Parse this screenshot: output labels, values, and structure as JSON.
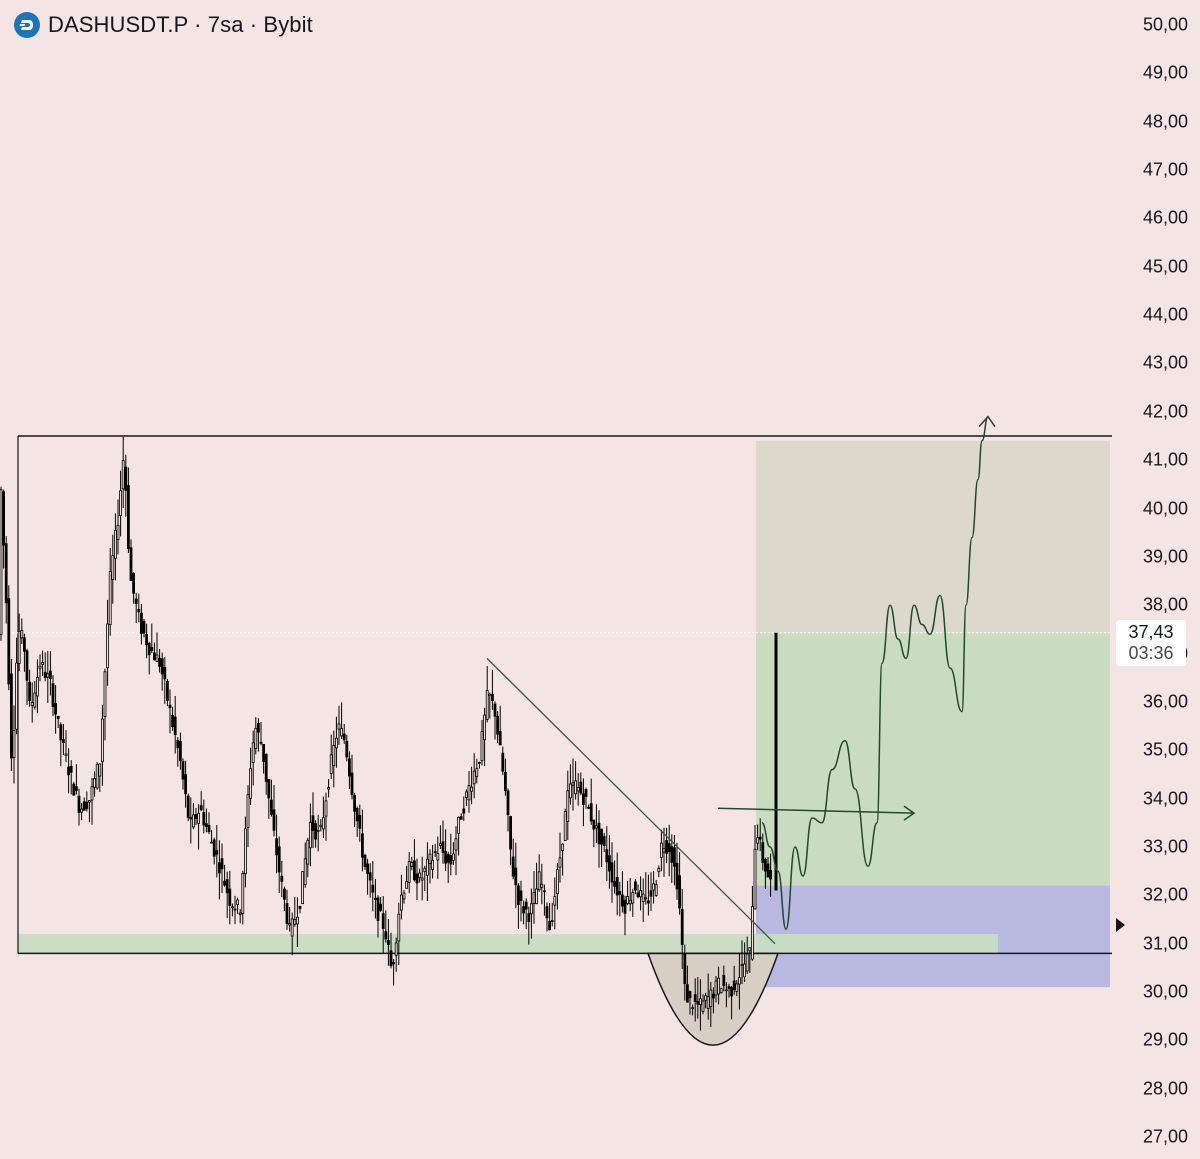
{
  "header": {
    "title": "DASHUSDT.P · 7sa · Bybit",
    "icon": "dash-coin-icon",
    "icon_color": "#1c75bc"
  },
  "price_axis": {
    "ticks": [
      "50,00",
      "49,00",
      "48,00",
      "47,00",
      "46,00",
      "45,00",
      "44,00",
      "43,00",
      "42,00",
      "41,00",
      "40,00",
      "39,00",
      "38,00",
      "37,00",
      "36,00",
      "35,00",
      "34,00",
      "33,00",
      "32,00",
      "31,00",
      "30,00",
      "29,00",
      "28,00",
      "27,00"
    ],
    "tick_values": [
      50,
      49,
      48,
      47,
      46,
      45,
      44,
      43,
      42,
      41,
      40,
      39,
      38,
      37,
      36,
      35,
      34,
      33,
      32,
      31,
      30,
      29,
      28,
      27
    ]
  },
  "last_price": {
    "price": "37,43",
    "countdown": "03:36",
    "value": 37.43
  },
  "colors": {
    "background": "#f5e4e4",
    "candles": "#000000",
    "trend_line": "#2e5e3a",
    "target_zone": "#c9dcc0",
    "profit_zone": "#dcd9cc",
    "stop_zone": "#b8b8e0",
    "support_band": "#c8ddc3"
  },
  "chart_data": {
    "type": "candlestick",
    "symbol": "DASHUSDT.P",
    "interval": "7sa",
    "exchange": "Bybit",
    "ylim": [
      27,
      50
    ],
    "last_price": 37.43,
    "horizontal_levels": [
      41.5,
      30.8
    ],
    "long_position": {
      "entry": 32.2,
      "stop": 30.1,
      "target": 41.4
    },
    "support_band": [
      30.8,
      31.2
    ],
    "price_path": [
      [
        0,
        40.8
      ],
      [
        6,
        38.2
      ],
      [
        12,
        34.6
      ],
      [
        18,
        37.5
      ],
      [
        24,
        37.2
      ],
      [
        30,
        35.8
      ],
      [
        40,
        36.8
      ],
      [
        50,
        36.4
      ],
      [
        60,
        35.3
      ],
      [
        70,
        34.5
      ],
      [
        80,
        33.8
      ],
      [
        90,
        34.0
      ],
      [
        100,
        34.8
      ],
      [
        110,
        38.5
      ],
      [
        118,
        39.8
      ],
      [
        124,
        41.2
      ],
      [
        130,
        38.6
      ],
      [
        140,
        37.6
      ],
      [
        150,
        37.1
      ],
      [
        160,
        36.8
      ],
      [
        170,
        35.8
      ],
      [
        180,
        34.8
      ],
      [
        190,
        33.4
      ],
      [
        200,
        33.8
      ],
      [
        210,
        33.2
      ],
      [
        220,
        32.6
      ],
      [
        230,
        31.9
      ],
      [
        240,
        31.7
      ],
      [
        250,
        34.6
      ],
      [
        255,
        35.5
      ],
      [
        262,
        35.1
      ],
      [
        270,
        33.8
      ],
      [
        280,
        32.4
      ],
      [
        290,
        31.2
      ],
      [
        300,
        31.9
      ],
      [
        310,
        33.5
      ],
      [
        320,
        33.2
      ],
      [
        330,
        34.6
      ],
      [
        338,
        35.5
      ],
      [
        345,
        35.2
      ],
      [
        355,
        33.8
      ],
      [
        365,
        32.6
      ],
      [
        375,
        31.8
      ],
      [
        385,
        31.3
      ],
      [
        392,
        30.4
      ],
      [
        400,
        31.9
      ],
      [
        410,
        32.6
      ],
      [
        420,
        32.3
      ],
      [
        430,
        32.7
      ],
      [
        440,
        33.0
      ],
      [
        450,
        32.6
      ],
      [
        460,
        33.6
      ],
      [
        470,
        34.3
      ],
      [
        480,
        34.9
      ],
      [
        488,
        36.2
      ],
      [
        495,
        35.8
      ],
      [
        505,
        34.2
      ],
      [
        512,
        32.6
      ],
      [
        520,
        31.8
      ],
      [
        530,
        31.6
      ],
      [
        540,
        32.4
      ],
      [
        550,
        31.3
      ],
      [
        560,
        32.8
      ],
      [
        568,
        34.1
      ],
      [
        575,
        34.3
      ],
      [
        585,
        34.0
      ],
      [
        595,
        33.4
      ],
      [
        605,
        32.9
      ],
      [
        615,
        32.2
      ],
      [
        625,
        31.8
      ],
      [
        635,
        32.2
      ],
      [
        645,
        31.8
      ],
      [
        655,
        32.2
      ],
      [
        662,
        33.1
      ],
      [
        670,
        33.0
      ],
      [
        678,
        32.2
      ],
      [
        682,
        31.0
      ],
      [
        685,
        30.0
      ],
      [
        690,
        29.8
      ],
      [
        700,
        29.7
      ],
      [
        710,
        29.9
      ],
      [
        720,
        30.2
      ],
      [
        730,
        30.0
      ],
      [
        740,
        30.4
      ],
      [
        750,
        30.8
      ],
      [
        756,
        33.5
      ],
      [
        762,
        32.8
      ],
      [
        768,
        32.4
      ],
      [
        774,
        32.1
      ],
      [
        776,
        37.4
      ]
    ],
    "annotations": [
      {
        "type": "trendline",
        "from": [
          487,
          36.9
        ],
        "to": [
          775,
          31.0
        ]
      },
      {
        "type": "rounded_bottom",
        "from": [
          648,
          30.8
        ],
        "to": [
          778,
          30.8
        ],
        "low": 28.9
      },
      {
        "type": "forecast_path",
        "points": [
          [
            762,
            33.5
          ],
          [
            770,
            33.0
          ],
          [
            778,
            32.5
          ],
          [
            786,
            31.3
          ],
          [
            795,
            33.0
          ],
          [
            803,
            32.4
          ],
          [
            812,
            33.6
          ],
          [
            822,
            33.5
          ],
          [
            832,
            34.6
          ],
          [
            845,
            35.2
          ],
          [
            855,
            34.2
          ],
          [
            868,
            32.6
          ],
          [
            877,
            33.5
          ],
          [
            882,
            36.8
          ],
          [
            890,
            38.0
          ],
          [
            898,
            37.3
          ],
          [
            906,
            36.9
          ],
          [
            914,
            38.0
          ],
          [
            922,
            37.6
          ],
          [
            930,
            37.4
          ],
          [
            940,
            38.2
          ],
          [
            950,
            36.7
          ],
          [
            962,
            35.8
          ],
          [
            966,
            38.0
          ],
          [
            972,
            39.4
          ],
          [
            978,
            40.6
          ],
          [
            982,
            41.4
          ],
          [
            988,
            41.9
          ]
        ]
      },
      {
        "type": "arrow",
        "from": [
          718,
          33.8
        ],
        "to": [
          914,
          33.7
        ]
      }
    ]
  }
}
